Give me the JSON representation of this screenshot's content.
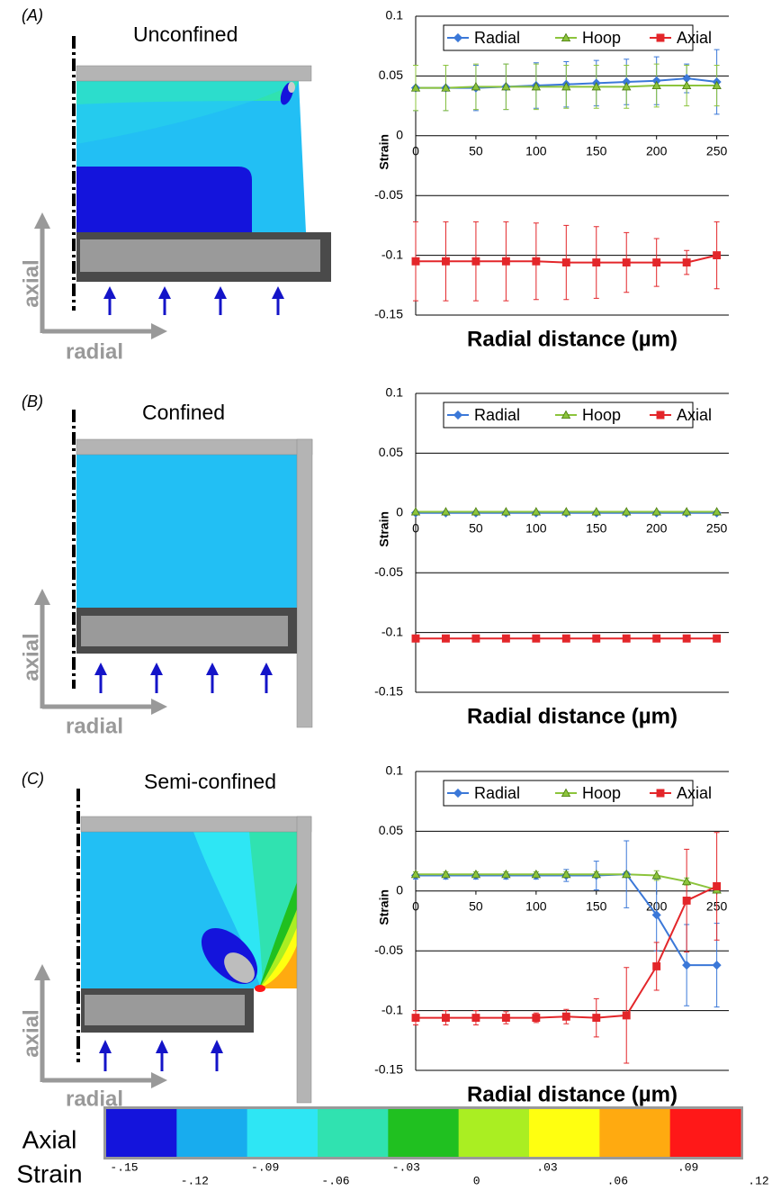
{
  "panels": [
    {
      "label": "(A)",
      "title": "Unconfined",
      "axial": "axial",
      "radial": "radial"
    },
    {
      "label": "(B)",
      "title": "Confined",
      "axial": "axial",
      "radial": "radial"
    },
    {
      "label": "(C)",
      "title": "Semi-confined",
      "axial": "axial",
      "radial": "radial"
    }
  ],
  "chart_data": [
    {
      "type": "line",
      "x_label": "Radial distance (µm)",
      "y_label": "Strain",
      "legend": "top",
      "x": [
        0,
        25,
        50,
        75,
        100,
        125,
        150,
        175,
        200,
        225,
        250
      ],
      "xlim": [
        0,
        260
      ],
      "xticks": [
        0,
        50,
        100,
        150,
        200,
        250
      ],
      "ylim": [
        -0.15,
        0.1
      ],
      "yticks": [
        -0.15,
        -0.1,
        -0.05,
        0,
        0.05,
        0.1
      ],
      "grid": true,
      "series": [
        {
          "name": "Radial",
          "color": "#3b78d8",
          "marker": "diamond",
          "values": [
            0.04,
            0.04,
            0.04,
            0.041,
            0.042,
            0.043,
            0.044,
            0.045,
            0.046,
            0.048,
            0.045
          ],
          "errors": [
            0.019,
            0.019,
            0.019,
            0.019,
            0.019,
            0.019,
            0.019,
            0.019,
            0.02,
            0.012,
            0.027
          ]
        },
        {
          "name": "Hoop",
          "color": "#8cc43c",
          "marker": "triangle",
          "values": [
            0.04,
            0.04,
            0.041,
            0.041,
            0.041,
            0.041,
            0.041,
            0.041,
            0.042,
            0.042,
            0.042
          ],
          "errors": [
            0.019,
            0.019,
            0.019,
            0.019,
            0.019,
            0.018,
            0.018,
            0.018,
            0.018,
            0.017,
            0.017
          ]
        },
        {
          "name": "Axial",
          "color": "#e3262a",
          "marker": "square",
          "values": [
            -0.105,
            -0.105,
            -0.105,
            -0.105,
            -0.105,
            -0.106,
            -0.106,
            -0.106,
            -0.106,
            -0.106,
            -0.1
          ],
          "errors": [
            0.033,
            0.033,
            0.033,
            0.033,
            0.032,
            0.031,
            0.03,
            0.025,
            0.02,
            0.01,
            0.028
          ]
        }
      ]
    },
    {
      "type": "line",
      "x_label": "Radial distance (µm)",
      "y_label": "Strain",
      "legend": "top",
      "x": [
        0,
        25,
        50,
        75,
        100,
        125,
        150,
        175,
        200,
        225,
        250
      ],
      "xlim": [
        0,
        260
      ],
      "xticks": [
        0,
        50,
        100,
        150,
        200,
        250
      ],
      "ylim": [
        -0.15,
        0.1
      ],
      "yticks": [
        -0.15,
        -0.1,
        -0.05,
        0,
        0.05,
        0.1
      ],
      "grid": true,
      "series": [
        {
          "name": "Radial",
          "color": "#3b78d8",
          "marker": "diamond",
          "values": [
            0,
            0,
            0,
            0,
            0,
            0,
            0,
            0,
            0,
            0,
            0
          ]
        },
        {
          "name": "Hoop",
          "color": "#8cc43c",
          "marker": "triangle",
          "values": [
            0.001,
            0.001,
            0.001,
            0.001,
            0.001,
            0.001,
            0.001,
            0.001,
            0.001,
            0.001,
            0.001
          ]
        },
        {
          "name": "Axial",
          "color": "#e3262a",
          "marker": "square",
          "values": [
            -0.105,
            -0.105,
            -0.105,
            -0.105,
            -0.105,
            -0.105,
            -0.105,
            -0.105,
            -0.105,
            -0.105,
            -0.105
          ]
        }
      ]
    },
    {
      "type": "line",
      "x_label": "Radial distance (µm)",
      "y_label": "Strain",
      "legend": "top",
      "x": [
        0,
        25,
        50,
        75,
        100,
        125,
        150,
        175,
        200,
        225,
        250
      ],
      "xlim": [
        0,
        260
      ],
      "xticks": [
        0,
        50,
        100,
        150,
        200,
        250
      ],
      "ylim": [
        -0.15,
        0.1
      ],
      "yticks": [
        -0.15,
        -0.1,
        -0.05,
        0,
        0.05,
        0.1
      ],
      "grid": true,
      "series": [
        {
          "name": "Radial",
          "color": "#3b78d8",
          "marker": "diamond",
          "values": [
            0.013,
            0.013,
            0.013,
            0.013,
            0.013,
            0.013,
            0.013,
            0.014,
            -0.02,
            -0.062,
            -0.062
          ],
          "errors": [
            0.003,
            0.003,
            0.003,
            0.003,
            0.003,
            0.005,
            0.012,
            0.028,
            0.03,
            0.034,
            0.035
          ]
        },
        {
          "name": "Hoop",
          "color": "#8cc43c",
          "marker": "triangle",
          "values": [
            0.014,
            0.014,
            0.014,
            0.014,
            0.014,
            0.014,
            0.014,
            0.014,
            0.013,
            0.008,
            0.001
          ],
          "errors": [
            0.002,
            0.002,
            0.002,
            0.002,
            0.002,
            0.002,
            0.002,
            0.002,
            0.004,
            0.003,
            0.002
          ]
        },
        {
          "name": "Axial",
          "color": "#e3262a",
          "marker": "square",
          "values": [
            -0.106,
            -0.106,
            -0.106,
            -0.106,
            -0.106,
            -0.105,
            -0.106,
            -0.104,
            -0.063,
            -0.008,
            0.004
          ],
          "errors": [
            0.006,
            0.006,
            0.006,
            0.005,
            0.004,
            0.006,
            0.016,
            0.04,
            0.02,
            0.043,
            0.045
          ]
        }
      ]
    }
  ],
  "colorbar": {
    "title_1": "Axial",
    "title_2": "Strain",
    "colors": [
      "#1414dc",
      "#18acee",
      "#2ee6f4",
      "#30e2b0",
      "#20c020",
      "#aaee22",
      "#ffff10",
      "#ffaa10",
      "#ff1818"
    ],
    "ticks": [
      {
        "value": -0.15,
        "label": "-.15"
      },
      {
        "value": -0.12,
        "label": "-.12"
      },
      {
        "value": -0.09,
        "label": "-.09"
      },
      {
        "value": -0.06,
        "label": "-.06"
      },
      {
        "value": -0.03,
        "label": "-.03"
      },
      0,
      {
        "value": 0.03,
        "label": ".03"
      },
      {
        "value": 0.06,
        "label": ".06"
      },
      {
        "value": 0.09,
        "label": ".09"
      },
      {
        "value": 0.12,
        "label": ".12"
      }
    ]
  }
}
